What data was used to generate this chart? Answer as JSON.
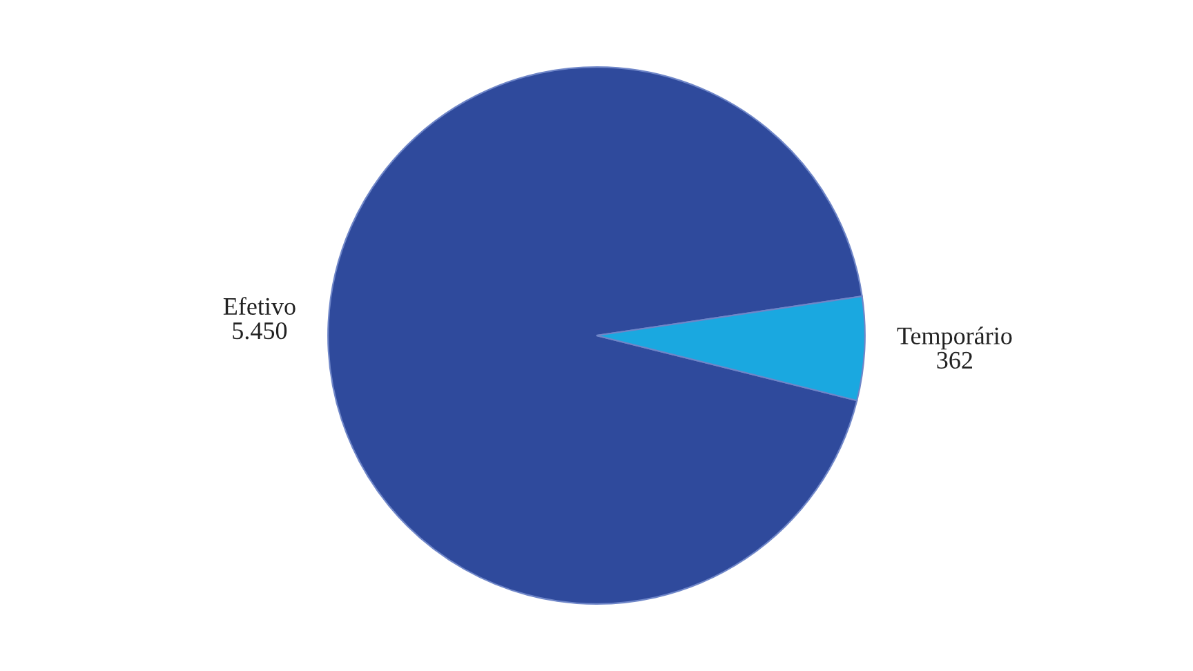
{
  "chart_data": {
    "type": "pie",
    "categories": [
      "Efetivo",
      "Temporário"
    ],
    "values": [
      5450,
      362
    ],
    "value_labels": [
      "5.450",
      "362"
    ],
    "colors": [
      "#2f4a9c",
      "#1aa8e0"
    ],
    "legend": false
  }
}
